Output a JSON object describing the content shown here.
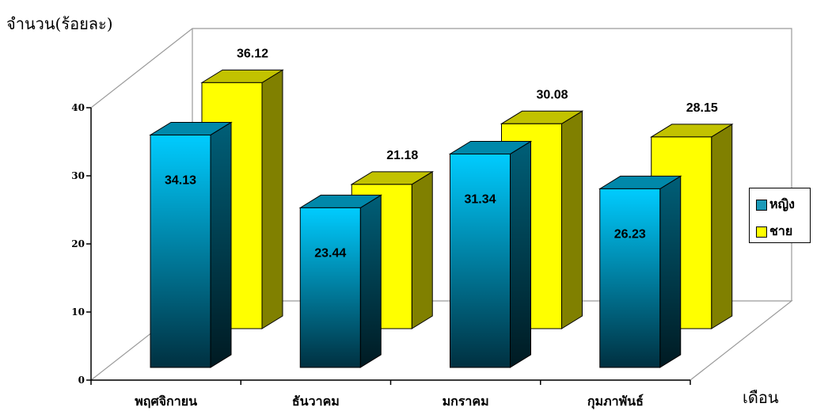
{
  "chart_data": {
    "type": "bar",
    "ylabel": "จำนวน(ร้อยละ)",
    "xlabel": "เดือน",
    "categories": [
      "พฤศจิกายน",
      "ธันวาคม",
      "มกราคม",
      "กุมภาพันธ์"
    ],
    "series": [
      {
        "name": "หญิง",
        "values": [
          34.13,
          23.44,
          31.34,
          26.23
        ]
      },
      {
        "name": "ชาย",
        "values": [
          36.12,
          21.18,
          30.08,
          28.15
        ]
      }
    ],
    "yticks": [
      "0",
      "10",
      "20",
      "30",
      "40"
    ],
    "ylim": [
      0,
      40
    ],
    "legend": "right",
    "grid": false,
    "colors": {
      "female_front": "#00ccff",
      "female_dark": "#002f3a",
      "female_side": "#004a5c",
      "female_top": "#0088aa",
      "male_front": "#ffff00",
      "male_side": "#808000",
      "male_top": "#c2c200"
    }
  }
}
